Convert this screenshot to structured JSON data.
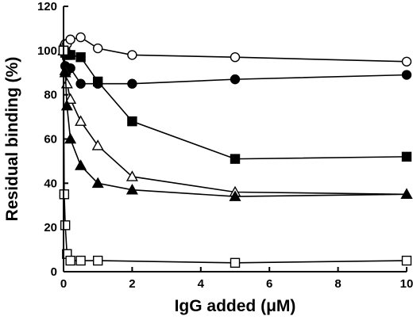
{
  "chart_data": {
    "type": "line",
    "title": "",
    "xlabel": "IgG added (μM)",
    "ylabel": "Residual binding (%)",
    "xlim": [
      0,
      10
    ],
    "ylim": [
      0,
      120
    ],
    "xticks": [
      0,
      2,
      4,
      6,
      8,
      10
    ],
    "yticks": [
      0,
      20,
      40,
      60,
      80,
      100,
      120
    ],
    "grid": false,
    "legend": "none",
    "series": [
      {
        "marker": "circle",
        "fill": "open",
        "x": [
          0,
          0.02,
          0.05,
          0.1,
          0.2,
          0.5,
          1,
          2,
          5,
          10
        ],
        "y": [
          100,
          102,
          103,
          103,
          105,
          106,
          101,
          98,
          97,
          95
        ]
      },
      {
        "marker": "circle",
        "fill": "filled",
        "x": [
          0,
          0.05,
          0.1,
          0.2,
          0.5,
          1,
          2,
          5,
          10
        ],
        "y": [
          100,
          93,
          91,
          92,
          85,
          85,
          85,
          87,
          89
        ]
      },
      {
        "marker": "square",
        "fill": "filled",
        "x": [
          0,
          0.05,
          0.1,
          0.2,
          0.5,
          1,
          2,
          5,
          10
        ],
        "y": [
          100,
          99,
          98,
          98,
          97,
          86,
          68,
          51,
          52
        ]
      },
      {
        "marker": "triangle",
        "fill": "open",
        "x": [
          0,
          0.05,
          0.1,
          0.2,
          0.5,
          1,
          2,
          5,
          10
        ],
        "y": [
          100,
          91,
          85,
          78,
          68,
          57,
          43,
          36,
          35
        ]
      },
      {
        "marker": "triangle",
        "fill": "filled",
        "x": [
          0,
          0.05,
          0.1,
          0.2,
          0.5,
          1,
          2,
          5,
          10
        ],
        "y": [
          100,
          90,
          75,
          60,
          48,
          40,
          37,
          34,
          35
        ]
      },
      {
        "marker": "square",
        "fill": "open",
        "x": [
          0,
          0.02,
          0.05,
          0.1,
          0.2,
          0.5,
          1,
          5,
          10
        ],
        "y": [
          100,
          35,
          21,
          8,
          5,
          5,
          5,
          4,
          5
        ]
      }
    ]
  }
}
